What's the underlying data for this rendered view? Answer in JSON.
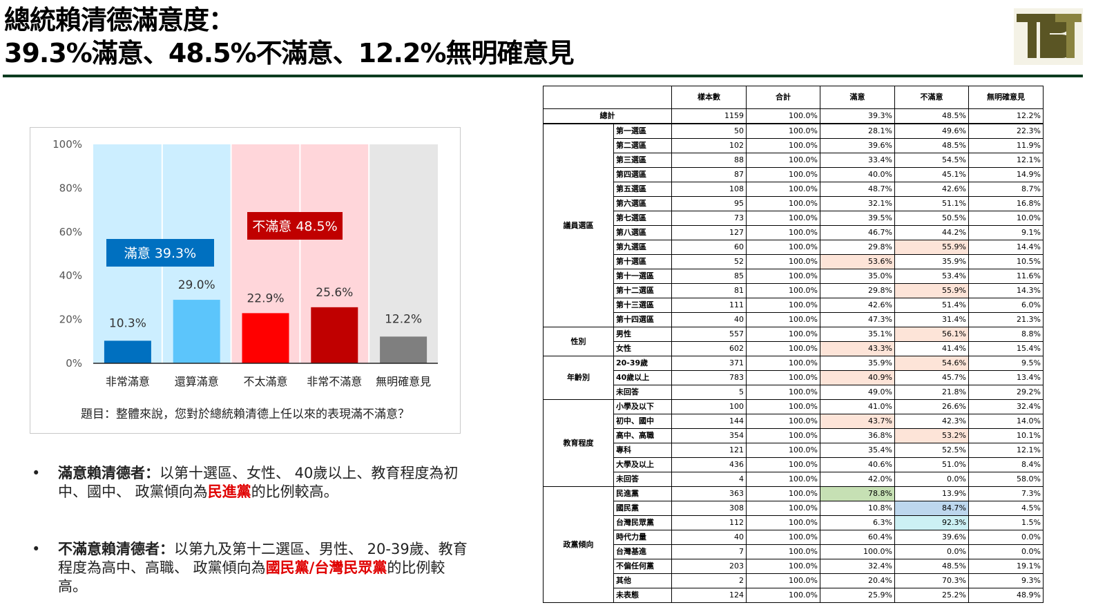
{
  "header": {
    "title_line1": "總統賴清德滿意度：",
    "title_line2": "39.3%滿意、48.5%不滿意、12.2%無明確意見"
  },
  "logo": {
    "text": "TBT",
    "colors": {
      "primary": "#5a5524",
      "secondary": "#8a8340"
    }
  },
  "chart_data": {
    "type": "bar",
    "categories": [
      "非常滿意",
      "還算滿意",
      "不太滿意",
      "非常不滿意",
      "無明確意見"
    ],
    "values": [
      10.3,
      29.0,
      22.9,
      25.6,
      12.2
    ],
    "value_labels": [
      "10.3%",
      "29.0%",
      "22.9%",
      "25.6%",
      "12.2%"
    ],
    "bar_colors": [
      "#0070c0",
      "#5cc5fb",
      "#ff0000",
      "#c00000",
      "#7f7f7f"
    ],
    "groups": [
      {
        "label": "滿意 39.3%",
        "span": [
          0,
          1
        ],
        "bg": "#cceeff",
        "label_bg": "#0070c0"
      },
      {
        "label": "不滿意 48.5%",
        "span": [
          2,
          3
        ],
        "bg": "#ffd6da",
        "label_bg": "#c00000"
      },
      {
        "label": "",
        "span": [
          4,
          4
        ],
        "bg": "#e6e6e6",
        "label_bg": ""
      }
    ],
    "ylim": [
      0,
      100
    ],
    "yticks": [
      "0%",
      "20%",
      "40%",
      "60%",
      "80%",
      "100%"
    ],
    "ytick_values": [
      0,
      20,
      40,
      60,
      80,
      100
    ],
    "question": "題目：整體來說，您對於總統賴清德上任以來的表現滿不滿意？"
  },
  "bullets": [
    {
      "bold": "滿意賴清德者：",
      "text1": "以第十選區、女性、 40歲以上、教育程度為初中、國中、 政黨傾向為",
      "red": "民進黨",
      "text2": "的比例較高。"
    },
    {
      "bold": "不滿意賴清德者：",
      "text1": "以第九及第十二選區、男性、 20-39歲、教育程度為高中、高職、 政黨傾向為",
      "red": "國民黨/台灣民眾黨",
      "text2": "的比例較高。"
    }
  ],
  "table": {
    "headers": [
      "樣本數",
      "合計",
      "滿意",
      "不滿意",
      "無明確意見"
    ],
    "total": {
      "label": "總計",
      "values": [
        "1159",
        "100.0%",
        "39.3%",
        "48.5%",
        "12.2%"
      ]
    },
    "highlight_colors": {
      "orange": "#fde4d8",
      "green": "#c6e0b4",
      "blue": "#bdd7ee",
      "cyan": "#ccf0f4"
    },
    "groups": [
      {
        "label": "議員選區",
        "rows": [
          {
            "label": "第一選區",
            "values": [
              "50",
              "100.0%",
              "28.1%",
              "49.6%",
              "22.3%"
            ],
            "hl": {}
          },
          {
            "label": "第二選區",
            "values": [
              "102",
              "100.0%",
              "39.6%",
              "48.5%",
              "11.9%"
            ],
            "hl": {}
          },
          {
            "label": "第三選區",
            "values": [
              "88",
              "100.0%",
              "33.4%",
              "54.5%",
              "12.1%"
            ],
            "hl": {}
          },
          {
            "label": "第四選區",
            "values": [
              "87",
              "100.0%",
              "40.0%",
              "45.1%",
              "14.9%"
            ],
            "hl": {}
          },
          {
            "label": "第五選區",
            "values": [
              "108",
              "100.0%",
              "48.7%",
              "42.6%",
              "8.7%"
            ],
            "hl": {}
          },
          {
            "label": "第六選區",
            "values": [
              "95",
              "100.0%",
              "32.1%",
              "51.1%",
              "16.8%"
            ],
            "hl": {}
          },
          {
            "label": "第七選區",
            "values": [
              "73",
              "100.0%",
              "39.5%",
              "50.5%",
              "10.0%"
            ],
            "hl": {}
          },
          {
            "label": "第八選區",
            "values": [
              "127",
              "100.0%",
              "46.7%",
              "44.2%",
              "9.1%"
            ],
            "hl": {}
          },
          {
            "label": "第九選區",
            "values": [
              "60",
              "100.0%",
              "29.8%",
              "55.9%",
              "14.4%"
            ],
            "hl": {
              "3": "orange"
            }
          },
          {
            "label": "第十選區",
            "values": [
              "52",
              "100.0%",
              "53.6%",
              "35.9%",
              "10.5%"
            ],
            "hl": {
              "2": "orange"
            }
          },
          {
            "label": "第十一選區",
            "values": [
              "85",
              "100.0%",
              "35.0%",
              "53.4%",
              "11.6%"
            ],
            "hl": {}
          },
          {
            "label": "第十二選區",
            "values": [
              "81",
              "100.0%",
              "29.8%",
              "55.9%",
              "14.3%"
            ],
            "hl": {
              "3": "orange"
            }
          },
          {
            "label": "第十三選區",
            "values": [
              "111",
              "100.0%",
              "42.6%",
              "51.4%",
              "6.0%"
            ],
            "hl": {}
          },
          {
            "label": "第十四選區",
            "values": [
              "40",
              "100.0%",
              "47.3%",
              "31.4%",
              "21.3%"
            ],
            "hl": {}
          }
        ]
      },
      {
        "label": "性別",
        "rows": [
          {
            "label": "男性",
            "values": [
              "557",
              "100.0%",
              "35.1%",
              "56.1%",
              "8.8%"
            ],
            "hl": {
              "3": "orange"
            }
          },
          {
            "label": "女性",
            "values": [
              "602",
              "100.0%",
              "43.3%",
              "41.4%",
              "15.4%"
            ],
            "hl": {
              "2": "orange"
            }
          }
        ]
      },
      {
        "label": "年齡別",
        "rows": [
          {
            "label": "20-39歲",
            "values": [
              "371",
              "100.0%",
              "35.9%",
              "54.6%",
              "9.5%"
            ],
            "hl": {
              "3": "orange"
            }
          },
          {
            "label": "40歲以上",
            "values": [
              "783",
              "100.0%",
              "40.9%",
              "45.7%",
              "13.4%"
            ],
            "hl": {
              "2": "orange"
            }
          },
          {
            "label": "未回答",
            "values": [
              "5",
              "100.0%",
              "49.0%",
              "21.8%",
              "29.2%"
            ],
            "hl": {}
          }
        ]
      },
      {
        "label": "教育程度",
        "rows": [
          {
            "label": "小學及以下",
            "values": [
              "100",
              "100.0%",
              "41.0%",
              "26.6%",
              "32.4%"
            ],
            "hl": {}
          },
          {
            "label": "初中、國中",
            "values": [
              "144",
              "100.0%",
              "43.7%",
              "42.3%",
              "14.0%"
            ],
            "hl": {
              "2": "orange"
            }
          },
          {
            "label": "高中、高職",
            "values": [
              "354",
              "100.0%",
              "36.8%",
              "53.2%",
              "10.1%"
            ],
            "hl": {
              "3": "orange"
            }
          },
          {
            "label": "專科",
            "values": [
              "121",
              "100.0%",
              "35.4%",
              "52.5%",
              "12.1%"
            ],
            "hl": {}
          },
          {
            "label": "大學及以上",
            "values": [
              "436",
              "100.0%",
              "40.6%",
              "51.0%",
              "8.4%"
            ],
            "hl": {}
          },
          {
            "label": "未回答",
            "values": [
              "4",
              "100.0%",
              "42.0%",
              "0.0%",
              "58.0%"
            ],
            "hl": {}
          }
        ]
      },
      {
        "label": "政黨傾向",
        "rows": [
          {
            "label": "民進黨",
            "values": [
              "363",
              "100.0%",
              "78.8%",
              "13.9%",
              "7.3%"
            ],
            "hl": {
              "2": "green"
            }
          },
          {
            "label": "國民黨",
            "values": [
              "308",
              "100.0%",
              "10.8%",
              "84.7%",
              "4.5%"
            ],
            "hl": {
              "3": "blue"
            }
          },
          {
            "label": "台灣民眾黨",
            "values": [
              "112",
              "100.0%",
              "6.3%",
              "92.3%",
              "1.5%"
            ],
            "hl": {
              "3": "cyan"
            }
          },
          {
            "label": "時代力量",
            "values": [
              "40",
              "100.0%",
              "60.4%",
              "39.6%",
              "0.0%"
            ],
            "hl": {}
          },
          {
            "label": "台灣基進",
            "values": [
              "7",
              "100.0%",
              "100.0%",
              "0.0%",
              "0.0%"
            ],
            "hl": {}
          },
          {
            "label": "不偏任何黨",
            "values": [
              "203",
              "100.0%",
              "32.4%",
              "48.5%",
              "19.1%"
            ],
            "hl": {}
          },
          {
            "label": "其他",
            "values": [
              "2",
              "100.0%",
              "20.4%",
              "70.3%",
              "9.3%"
            ],
            "hl": {}
          },
          {
            "label": "未表態",
            "values": [
              "124",
              "100.0%",
              "25.9%",
              "25.2%",
              "48.9%"
            ],
            "hl": {}
          }
        ]
      }
    ]
  }
}
